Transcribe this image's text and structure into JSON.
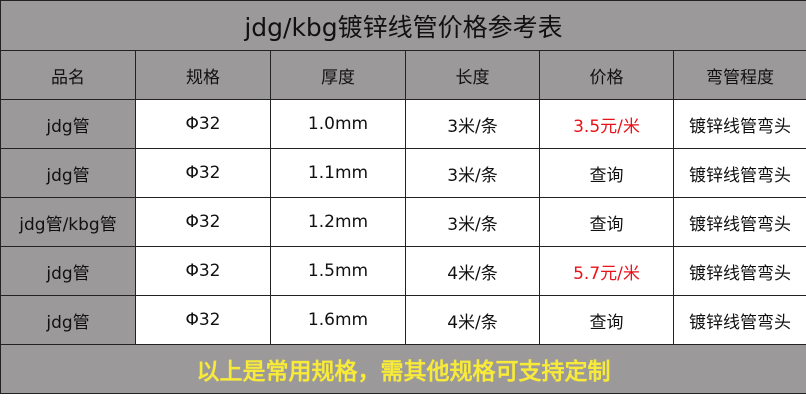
{
  "title": "jdg/kbg镀锌线管价格参考表",
  "headers": [
    "品名",
    "规格",
    "厚度",
    "长度",
    "价格",
    "弯管程度"
  ],
  "rows": [
    [
      "jdg管",
      "Φ32",
      "1.0mm",
      "3米/条",
      "3.5元/米",
      "镀锌线管弯头"
    ],
    [
      "jdg管",
      "Φ32",
      "1.1mm",
      "3米/条",
      "查询",
      "镀锌线管弯头"
    ],
    [
      "jdg管/kbg管",
      "Φ32",
      "1.2mm",
      "3米/条",
      "查询",
      "镀锌线管弯头"
    ],
    [
      "jdg管",
      "Φ32",
      "1.5mm",
      "4米/条",
      "5.7元/米",
      "镀锌线管弯头"
    ],
    [
      "jdg管",
      "Φ32",
      "1.6mm",
      "4米/条",
      "查询",
      "镀锌线管弯头"
    ]
  ],
  "price_highlight_color": "#e8121a",
  "footer": "以上是常用规格，需其他规格可支持定制"
}
